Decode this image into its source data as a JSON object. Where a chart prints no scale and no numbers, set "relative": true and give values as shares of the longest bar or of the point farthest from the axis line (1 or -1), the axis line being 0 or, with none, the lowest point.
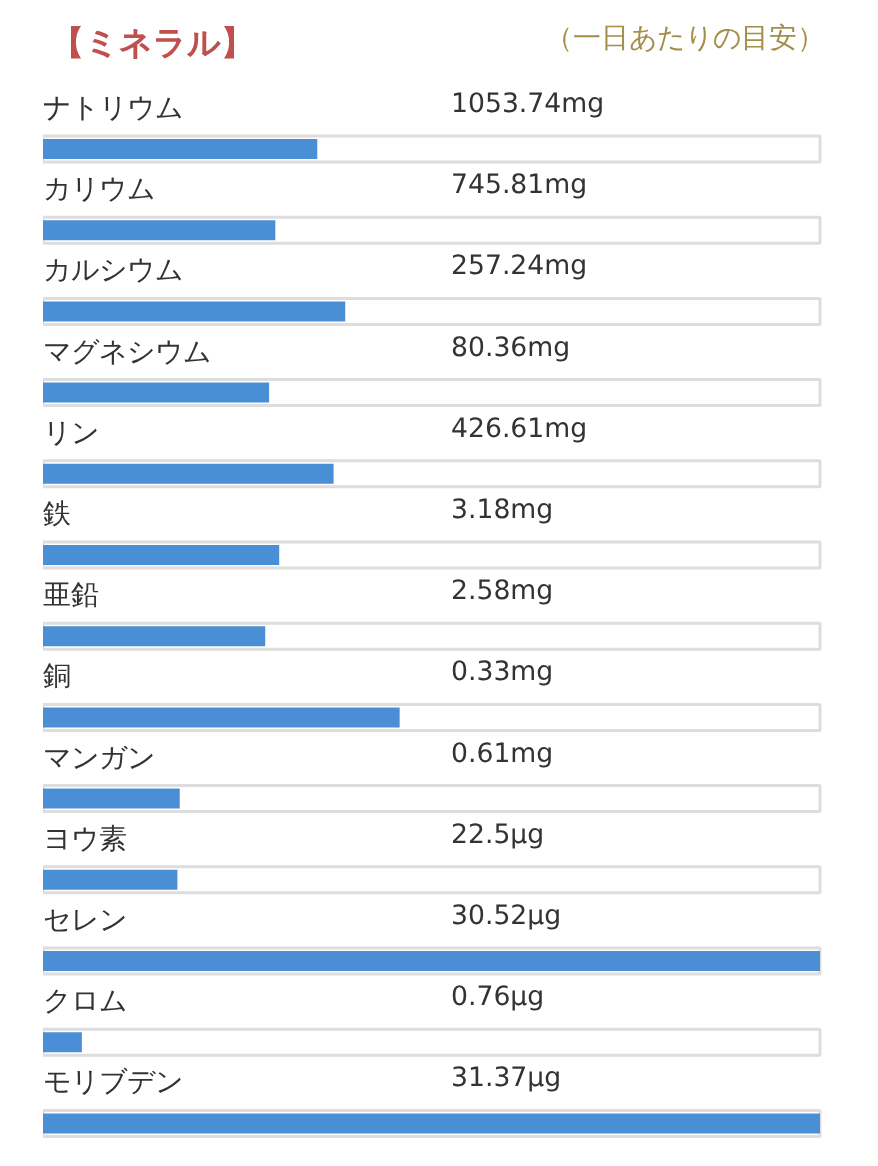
{
  "chart_data": {
    "type": "bar",
    "orientation": "horizontal",
    "relative": true,
    "title": "【ミネラル】",
    "subtitle": "（一日あたりの目安）",
    "categories": [
      "ナトリウム",
      "カリウム",
      "カルシウム",
      "マグネシウム",
      "リン",
      "鉄",
      "亜鉛",
      "銅",
      "マンガン",
      "ヨウ素",
      "セレン",
      "クロム",
      "モリブデン"
    ],
    "values": [
      0.353,
      0.299,
      0.389,
      0.291,
      0.374,
      0.304,
      0.286,
      0.459,
      0.176,
      0.173,
      1.0,
      0.05,
      1.0
    ],
    "annotations": [
      "1053.74mg",
      "745.81mg",
      "257.24mg",
      "80.36mg",
      "426.61mg",
      "3.18mg",
      "2.58mg",
      "0.33mg",
      "0.61mg",
      "22.5μg",
      "30.52μg",
      "0.76μg",
      "31.37μg"
    ],
    "color": "#4a8fd6"
  }
}
